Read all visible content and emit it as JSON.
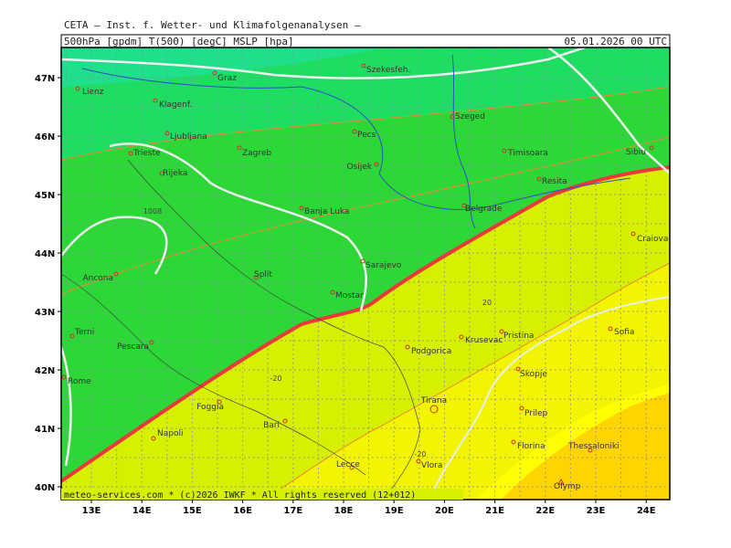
{
  "header": {
    "title": "CETA — Inst. f. Wetter- und Klimafolgenanalysen —",
    "fields": "500hPa [gpdm] T(500) [degC] MSLP [hpa]",
    "valid_time": "05.01.2026 00 UTC"
  },
  "footer": "meteo-services.com * (c)2026 IWKF * All rights reserved (12+012)",
  "axes": {
    "lat_labels": [
      "47N",
      "46N",
      "45N",
      "44N",
      "43N",
      "42N",
      "41N",
      "40N"
    ],
    "lon_labels": [
      "13E",
      "14E",
      "15E",
      "16E",
      "17E",
      "18E",
      "19E",
      "20E",
      "21E",
      "22E",
      "23E",
      "24E"
    ]
  },
  "cities": [
    "Graz",
    "Szekesfeh.",
    "Lienz",
    "Klagenf.",
    "Szeged",
    "Ljubljana",
    "Pecs",
    "Zagreb",
    "Timisoara",
    "Sibiu",
    "Trieste",
    "Osijek",
    "Rijeka",
    "Resita",
    "Belgrade",
    "Banja Luka",
    "Craiova",
    "Sarajevo",
    "Ancona",
    "Split",
    "Mostar",
    "Pristina",
    "Krusevac",
    "Sofia",
    "Terni",
    "Podgorica",
    "Pescara",
    "Rome",
    "Skopje",
    "Foggia",
    "Tirana",
    "Prilep",
    "Bari",
    "Napoli",
    "Florina",
    "Thessaloniki",
    "Lecce",
    "Vlora",
    "Olymp"
  ],
  "contour_labels": [
    "1008",
    "-20",
    "-20",
    "20"
  ]
}
